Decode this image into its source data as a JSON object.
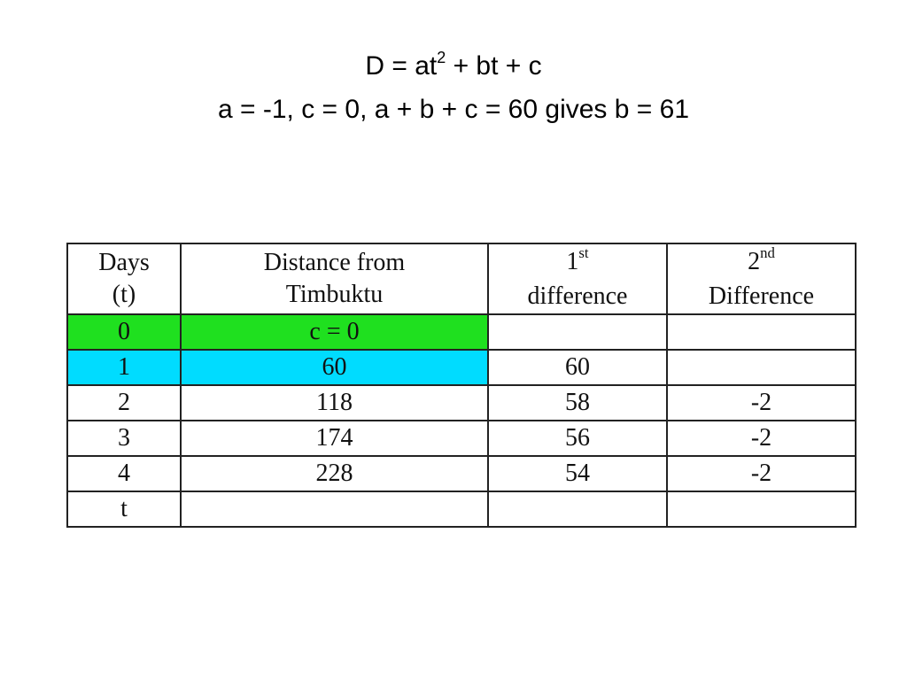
{
  "title": {
    "line1": {
      "before": "D = at",
      "sup": "2",
      "after": " + bt + c"
    },
    "line2": "a = -1, c = 0, a + b + c = 60 gives b = 61"
  },
  "table": {
    "headers": [
      {
        "line1": "Days",
        "line2": "(t)"
      },
      {
        "line1": "Distance from",
        "line2": "Timbuktu"
      },
      {
        "line1": "1",
        "sup": "st",
        "line2": "difference"
      },
      {
        "line1": "2",
        "sup": "nd",
        "line2": "Difference"
      }
    ],
    "rows": [
      {
        "cells": [
          "0",
          "c = 0",
          null,
          null
        ],
        "fill": "#1fe01f"
      },
      {
        "cells": [
          "1",
          "60",
          "60",
          null
        ],
        "fill": "#00dcff"
      },
      {
        "cells": [
          "2",
          "118",
          "58",
          "-2"
        ]
      },
      {
        "cells": [
          "3",
          "174",
          "56",
          "-2"
        ]
      },
      {
        "cells": [
          "4",
          "228",
          "54",
          "-2"
        ]
      },
      {
        "cells": [
          "t",
          null,
          null,
          null
        ]
      }
    ]
  }
}
